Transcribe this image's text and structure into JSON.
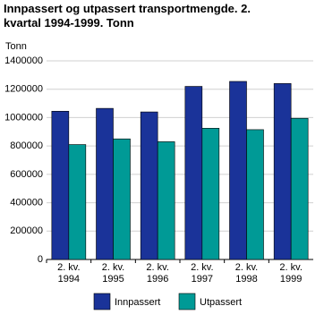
{
  "chart_data": {
    "type": "bar",
    "title": "Innpassert og utpassert transportmengde. 2. kvartal 1994-1999. Tonn",
    "y_label": "Tonn",
    "categories": [
      "2. kv. 1994",
      "2. kv. 1995",
      "2. kv. 1996",
      "2. kv. 1997",
      "2. kv. 1998",
      "2. kv. 1999"
    ],
    "series": [
      {
        "name": "Innpassert",
        "color": "#1a3399",
        "values": [
          1045000,
          1065000,
          1040000,
          1220000,
          1255000,
          1240000
        ]
      },
      {
        "name": "Utpassert",
        "color": "#009a96",
        "values": [
          810000,
          850000,
          830000,
          925000,
          915000,
          995000
        ]
      }
    ],
    "ylim": [
      0,
      1400000
    ],
    "yticks": [
      0,
      200000,
      400000,
      600000,
      800000,
      1000000,
      1200000,
      1400000
    ],
    "grid": true
  }
}
